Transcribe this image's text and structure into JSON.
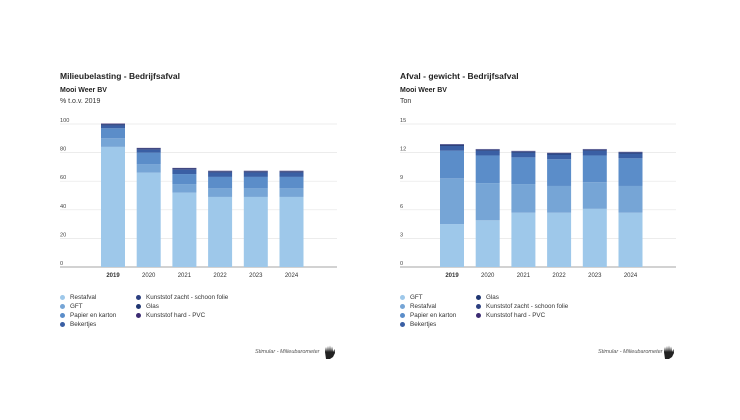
{
  "colors": {
    "restafval": "#9ec8ea",
    "gft": "#76a5d6",
    "papier": "#5b8dc9",
    "bekertjes": "#3a5fa4",
    "kunststof_zacht": "#2c3f80",
    "glas": "#1f3571",
    "kunststof_hard": "#3b2b72"
  },
  "source_text": "Stimular - Milieubarometer",
  "logo_icon": "hand-logo-icon",
  "chart_data": [
    {
      "type": "bar",
      "stacked": true,
      "title": "Milieubelasting - Bedrijfsafval",
      "subtitle": "Mooi Weer BV",
      "unit": "% t.o.v. 2019",
      "categories": [
        "2019",
        "2020",
        "2021",
        "2022",
        "2023",
        "2024"
      ],
      "ylim": [
        0,
        100
      ],
      "yticks": [
        0,
        20,
        40,
        60,
        80,
        100
      ],
      "series": [
        {
          "name": "Restafval",
          "color": "#9ec8ea",
          "values": [
            84,
            66,
            52,
            49,
            49,
            49
          ]
        },
        {
          "name": "GFT",
          "color": "#76a5d6",
          "values": [
            6,
            6,
            6,
            6,
            6,
            6
          ]
        },
        {
          "name": "Papier en karton",
          "color": "#5b8dc9",
          "values": [
            7,
            8,
            7,
            8,
            8,
            8
          ]
        },
        {
          "name": "Bekertjes",
          "color": "#3a5fa4",
          "values": [
            2,
            2,
            3,
            3,
            3,
            3
          ]
        },
        {
          "name": "Kunststof zacht - schoon folie",
          "color": "#2c3f80",
          "values": [
            0.5,
            0.5,
            0.5,
            0.5,
            0.5,
            0.5
          ]
        },
        {
          "name": "Glas",
          "color": "#1f3571",
          "values": [
            0.5,
            0.5,
            0.5,
            0.5,
            0.5,
            0.5
          ]
        },
        {
          "name": "Kunststof hard - PVC",
          "color": "#3b2b72",
          "values": [
            0.3,
            0.3,
            0.3,
            0.3,
            0.3,
            0.3
          ]
        }
      ],
      "legend": {
        "columns": [
          [
            "Restafval",
            "GFT",
            "Papier en karton",
            "Bekertjes"
          ],
          [
            "Kunststof zacht - schoon folie",
            "Glas",
            "Kunststof hard - PVC"
          ]
        ]
      }
    },
    {
      "type": "bar",
      "stacked": true,
      "title": "Afval - gewicht - Bedrijfsafval",
      "subtitle": "Mooi Weer BV",
      "unit": "Ton",
      "categories": [
        "2019",
        "2020",
        "2021",
        "2022",
        "2023",
        "2024"
      ],
      "ylim": [
        0,
        15
      ],
      "yticks": [
        0,
        3,
        6,
        9,
        12,
        15
      ],
      "series": [
        {
          "name": "GFT",
          "color": "#9ec8ea",
          "values": [
            4.5,
            4.9,
            5.7,
            5.7,
            6.1,
            5.7
          ]
        },
        {
          "name": "Restafval",
          "color": "#76a5d6",
          "values": [
            4.8,
            3.9,
            3.0,
            2.8,
            2.8,
            2.8
          ]
        },
        {
          "name": "Papier en karton",
          "color": "#5b8dc9",
          "values": [
            2.9,
            2.9,
            2.8,
            2.8,
            2.8,
            2.9
          ]
        },
        {
          "name": "Bekertjes",
          "color": "#3a5fa4",
          "values": [
            0.5,
            0.5,
            0.5,
            0.5,
            0.5,
            0.5
          ]
        },
        {
          "name": "Glas",
          "color": "#1f3571",
          "values": [
            0.1,
            0.1,
            0.1,
            0.1,
            0.1,
            0.1
          ]
        },
        {
          "name": "Kunststof zacht - schoon folie",
          "color": "#2c3f80",
          "values": [
            0.05,
            0.05,
            0.05,
            0.05,
            0.05,
            0.05
          ]
        },
        {
          "name": "Kunststof hard - PVC",
          "color": "#3b2b72",
          "values": [
            0.03,
            0.03,
            0.03,
            0.03,
            0.03,
            0.03
          ]
        }
      ],
      "legend": {
        "columns": [
          [
            "GFT",
            "Restafval",
            "Papier en karton",
            "Bekertjes"
          ],
          [
            "Glas",
            "Kunststof zacht - schoon folie",
            "Kunststof hard - PVC"
          ]
        ]
      }
    }
  ]
}
